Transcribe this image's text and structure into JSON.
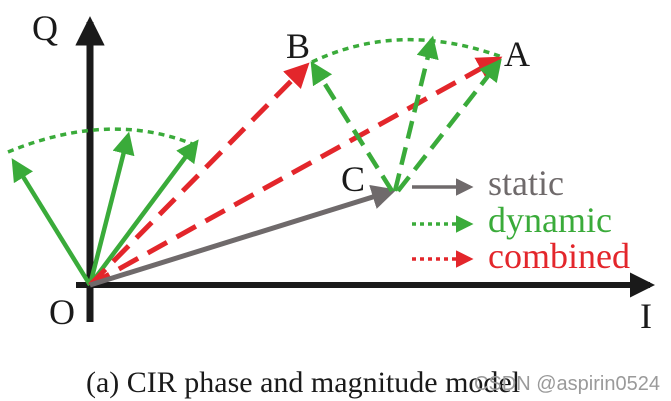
{
  "axes": {
    "y_label": "Q",
    "x_label": "I",
    "origin_label": "O"
  },
  "points": {
    "a": "A",
    "b": "B",
    "c": "C"
  },
  "legend": {
    "static": "static",
    "dynamic": "dynamic",
    "combined": "combined"
  },
  "caption": "(a) CIR phase and magnitude model",
  "watermark": "CSDN @aspirin0524",
  "colors": {
    "static": "#6f6a6b",
    "dynamic": "#3aab3a",
    "combined": "#e3262b",
    "axes": "#1a1a1a"
  }
}
